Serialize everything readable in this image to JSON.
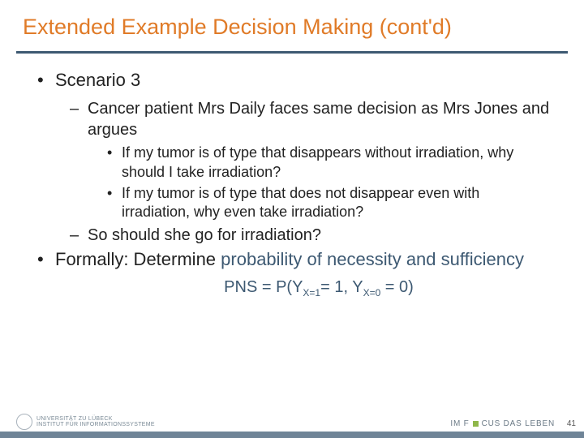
{
  "title": "Extended Example Decision Making (cont'd)",
  "colors": {
    "title": "#e07b28",
    "rule": "#3d5972",
    "accent": "#3d5972",
    "footer_bar": "#6f8497"
  },
  "bullets": {
    "scenario": "Scenario 3",
    "sub1": "Cancer patient Mrs Daily faces same decision as Mrs Jones and argues",
    "sub1a": "If my tumor is of type that disappears without irradiation, why should I take irradiation?",
    "sub1b": "If my tumor is of type that does not disappear even with irradiation, why even take irradiation?",
    "sub2": "So should she go for irradiation?",
    "formally_pre": "Formally: Determine ",
    "formally_accent": "probability of necessity and sufficiency"
  },
  "formula": {
    "lhs": "PNS = P(Y",
    "sub1": "X=1",
    "mid": "= 1, Y",
    "sub2": "X=0",
    "rhs": " = 0)"
  },
  "footer": {
    "uni_line1": "UNIVERSITÄT ZU LÜBECK",
    "uni_line2": "INSTITUT FÜR INFORMATIONSSYSTEME",
    "focus_pre": "IM F",
    "focus_post": "CUS DAS LEBEN",
    "page": "41"
  }
}
